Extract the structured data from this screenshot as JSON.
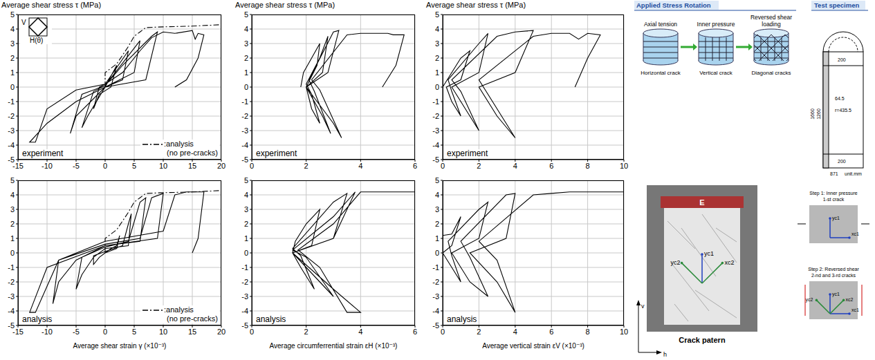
{
  "chart_data": [
    {
      "type": "line",
      "ylabel": "Average shear stress τ (MPa)",
      "annotation": "experiment",
      "inset": {
        "labels": [
          "V",
          "H(θ)"
        ]
      },
      "legend": "lower right",
      "grid": true,
      "xlim": [
        -15,
        20
      ],
      "xticks": [
        -15,
        -10,
        -5,
        0,
        5,
        10,
        15,
        20
      ],
      "ylim": [
        -5,
        5
      ],
      "yticks": [
        -5,
        -4,
        -3,
        -2,
        -1,
        0,
        1,
        2,
        3,
        4,
        5
      ],
      "series": [
        {
          "color": "#000000",
          "line_style": "solid",
          "x": [
            0,
            2,
            1,
            -1,
            -2,
            -1,
            0,
            4,
            3,
            0,
            -3,
            -4,
            -2,
            0,
            6,
            5,
            0,
            -5,
            -6,
            -4,
            0,
            3,
            8,
            9,
            7,
            0,
            -5,
            -10,
            -13,
            -12,
            -10,
            -5,
            0,
            3,
            6,
            8,
            10,
            12,
            15,
            15.5,
            16,
            17,
            16,
            14,
            12
          ],
          "values": [
            0,
            1.5,
            0,
            -0.5,
            -1.5,
            0,
            0.2,
            2.5,
            0.5,
            0,
            -2,
            -2.8,
            -0.3,
            0.1,
            3.2,
            1,
            0,
            -2,
            -3.2,
            -0.5,
            0.1,
            1.5,
            3.5,
            3.8,
            0.5,
            0,
            -1,
            -2.5,
            -3.8,
            -3.8,
            -1.5,
            -0.2,
            0.2,
            1,
            2.5,
            3.4,
            3.8,
            3.7,
            3.9,
            3.3,
            3.7,
            3.6,
            2,
            0.5,
            0
          ]
        },
        {
          "name": ":analysis (no pre-cracks)",
          "color": "#000000",
          "line_style": "dashdot",
          "x": [
            0,
            0,
            2,
            4,
            5,
            6,
            7,
            10,
            15,
            20
          ],
          "values": [
            0,
            1,
            1.6,
            2.8,
            3.5,
            3.8,
            4.1,
            4.15,
            4.2,
            4.3
          ]
        }
      ]
    },
    {
      "type": "line",
      "ylabel": "Average shear stress τ (MPa)",
      "annotation": "experiment",
      "grid": true,
      "xlim": [
        0,
        6
      ],
      "xticks": [
        0,
        2,
        4,
        6
      ],
      "ylim": [
        -5,
        5
      ],
      "yticks": [
        -5,
        -4,
        -3,
        -2,
        -1,
        0,
        1,
        2,
        3,
        4,
        5
      ],
      "series": [
        {
          "color": "#000000",
          "line_style": "solid",
          "x": [
            1.8,
            1.9,
            2.2,
            2.5,
            2.4,
            2,
            2.2,
            2.5,
            2.2,
            2,
            2.5,
            2.8,
            2.6,
            2,
            2.6,
            2.9,
            2.3,
            2.1,
            3,
            3.2,
            2.8,
            2,
            3,
            3.3,
            2.5,
            2.2,
            3.5,
            4,
            5,
            5.2,
            5.6,
            5.3,
            4.8
          ],
          "values": [
            0,
            1,
            2,
            3,
            1.5,
            0,
            -1.5,
            -2.5,
            -0.5,
            0.2,
            2,
            3.5,
            1,
            0,
            -2,
            -3.2,
            -0.3,
            0.5,
            3.8,
            3.9,
            1,
            0,
            -2.5,
            -3.5,
            -0.2,
            0.5,
            3.6,
            3.7,
            3.7,
            3.6,
            3.6,
            1.5,
            0
          ]
        }
      ]
    },
    {
      "type": "line",
      "ylabel": "Average shear stress τ (MPa)",
      "annotation": "experiment",
      "grid": true,
      "xlim": [
        0,
        10
      ],
      "xticks": [
        0,
        2,
        4,
        6,
        8,
        10
      ],
      "ylim": [
        -5,
        5
      ],
      "yticks": [
        -5,
        -4,
        -3,
        -2,
        -1,
        0,
        1,
        2,
        3,
        4,
        5
      ],
      "series": [
        {
          "color": "#000000",
          "line_style": "solid",
          "x": [
            0,
            0.5,
            1,
            1.5,
            1,
            0.2,
            0.5,
            1,
            0.5,
            0.3,
            2,
            2.5,
            2,
            0.5,
            1.5,
            2,
            1,
            0.5,
            3,
            4,
            5,
            4,
            2,
            3,
            4,
            2.5,
            2,
            5,
            6,
            7,
            7.5,
            8,
            8.7,
            8,
            7.3
          ],
          "values": [
            0,
            1,
            2,
            2.5,
            0.5,
            0,
            -1,
            -2,
            -0.3,
            0.5,
            3,
            3.7,
            1,
            0,
            -2,
            -3,
            -0.3,
            0.5,
            3.5,
            3.8,
            3.9,
            1,
            0,
            -2,
            -3.5,
            -0.5,
            0.5,
            3.5,
            3.7,
            3.7,
            3.3,
            3.7,
            3.6,
            2,
            0
          ]
        }
      ]
    },
    {
      "type": "line",
      "xlabel": "Average shear strain γ (×10⁻³)",
      "annotation": "analysis",
      "legend": "lower right",
      "grid": true,
      "xlim": [
        -15,
        20
      ],
      "xticks": [
        -15,
        -10,
        -5,
        0,
        5,
        10,
        15,
        20
      ],
      "ylim": [
        -5,
        5
      ],
      "yticks": [
        -5,
        -4,
        -3,
        -2,
        -1,
        0,
        1,
        2,
        3,
        4,
        5
      ],
      "series": [
        {
          "color": "#000000",
          "line_style": "solid",
          "x": [
            0,
            1,
            2,
            2.5,
            2,
            0,
            -1,
            -2,
            -2,
            0,
            3,
            4,
            4.5,
            4,
            0,
            -2,
            -4,
            -5,
            -4,
            0,
            4,
            6,
            7,
            6,
            0,
            -5,
            -8,
            -9,
            -8,
            0,
            6,
            8,
            10,
            9,
            0,
            -10,
            -13,
            -12,
            -8,
            0,
            10,
            12,
            14,
            17,
            16,
            15
          ],
          "values": [
            0,
            0.3,
            0.5,
            1.2,
            0.3,
            0,
            -0.3,
            -0.8,
            -0.2,
            0.1,
            0.5,
            2,
            2.7,
            0.5,
            0.3,
            -0.3,
            -1.5,
            -2.5,
            -0.3,
            0.4,
            0.8,
            3.5,
            3.8,
            0.8,
            0.5,
            -0.5,
            -2,
            -3.5,
            -0.5,
            0.6,
            1,
            3.8,
            4.1,
            1,
            0.5,
            -1,
            -4.1,
            -4.1,
            -0.5,
            0.8,
            1.5,
            4,
            4.2,
            4.2,
            1,
            0
          ]
        },
        {
          "name": ":analysis (no pre-cracks)",
          "color": "#000000",
          "line_style": "dashdot",
          "x": [
            0,
            0,
            2,
            4,
            5,
            6,
            7,
            10,
            15,
            20
          ],
          "values": [
            0,
            1,
            1.6,
            2.8,
            3.5,
            3.8,
            4.1,
            4.15,
            4.2,
            4.3
          ]
        }
      ]
    },
    {
      "type": "line",
      "xlabel": "Average circumferrential strain εH (×10⁻³)",
      "annotation": "analysis",
      "grid": true,
      "xlim": [
        0,
        6
      ],
      "xticks": [
        0,
        2,
        4,
        6
      ],
      "ylim": [
        -5,
        5
      ],
      "yticks": [
        -5,
        -4,
        -3,
        -2,
        -1,
        0,
        1,
        2,
        3,
        4,
        5
      ],
      "series": [
        {
          "color": "#000000",
          "line_style": "solid",
          "x": [
            1.5,
            1.6,
            2,
            2.5,
            2.2,
            1.5,
            1.8,
            2.3,
            1.8,
            1.5,
            3,
            3.5,
            3,
            1.5,
            2.5,
            3,
            2,
            1.5,
            3,
            3.8,
            3,
            1.5,
            3,
            4,
            3.5,
            2.5,
            1.7,
            3,
            4,
            6
          ],
          "values": [
            0,
            0.8,
            2,
            3,
            0.5,
            0,
            -1,
            -2.5,
            -0.2,
            0.3,
            3.5,
            4.1,
            1,
            0,
            -2,
            -3,
            -0.3,
            0.2,
            2.5,
            4.2,
            1,
            0,
            -2.5,
            -4.1,
            -4.1,
            -1,
            0.2,
            2,
            4.2,
            4.2
          ]
        }
      ]
    },
    {
      "type": "line",
      "xlabel": "Average vertical strain εV (×10⁻³)",
      "annotation": "analysis",
      "grid": true,
      "xlim": [
        0,
        10
      ],
      "xticks": [
        0,
        2,
        4,
        6,
        8,
        10
      ],
      "ylim": [
        -5,
        5
      ],
      "yticks": [
        -5,
        -4,
        -3,
        -2,
        -1,
        0,
        1,
        2,
        3,
        4,
        5
      ],
      "series": [
        {
          "color": "#000000",
          "line_style": "solid",
          "x": [
            0,
            0,
            0.5,
            1,
            0.5,
            0,
            0.5,
            1,
            0.5,
            0.3,
            2,
            2.5,
            2,
            0.5,
            1.5,
            2.5,
            1.5,
            1,
            3.5,
            4,
            3.5,
            1.5,
            3,
            4,
            3,
            2,
            5,
            6,
            7,
            8,
            9,
            10
          ],
          "values": [
            0,
            1.2,
            1.3,
            2.5,
            0.5,
            0,
            -1,
            -2,
            -0.2,
            0.8,
            3,
            3.5,
            1,
            0,
            -2,
            -3,
            -0.3,
            0.8,
            4,
            4.1,
            1,
            0,
            -2,
            -4.1,
            -0.5,
            0.8,
            4,
            4.1,
            4.2,
            4.2,
            4.2,
            4.2
          ]
        }
      ]
    }
  ],
  "diagram": {
    "stress_rotation": {
      "title": "Applied Stress Rotation",
      "steps": [
        {
          "load": "Axial tension",
          "crack": "Horizontal crack"
        },
        {
          "load": "Inner pressure",
          "crack": "Vertical crack"
        },
        {
          "load": "Reversed shear loading",
          "crack": "Diagonal cracks"
        }
      ]
    },
    "specimen": {
      "title": "Test specimen",
      "dims": [
        "1660",
        "1260",
        "200",
        "200",
        "64.5",
        "r=435.5",
        "871"
      ],
      "unit": "unit.mm"
    },
    "photo": {
      "caption": "Crack patern",
      "marker": "E",
      "axes": [
        "yc1",
        "yc2",
        "xc2"
      ],
      "frame_axes": [
        "v",
        "h"
      ]
    },
    "steps": [
      {
        "title": "Step 1: Inner pressure",
        "subtitle": "1-st crack",
        "axes": [
          "yc1",
          "xc1"
        ]
      },
      {
        "title": "Step 2: Reversed shear",
        "subtitle": "2-nd and 3-rd cracks",
        "axes": [
          "yc1",
          "yc2",
          "xc1",
          "xc2"
        ]
      }
    ]
  }
}
